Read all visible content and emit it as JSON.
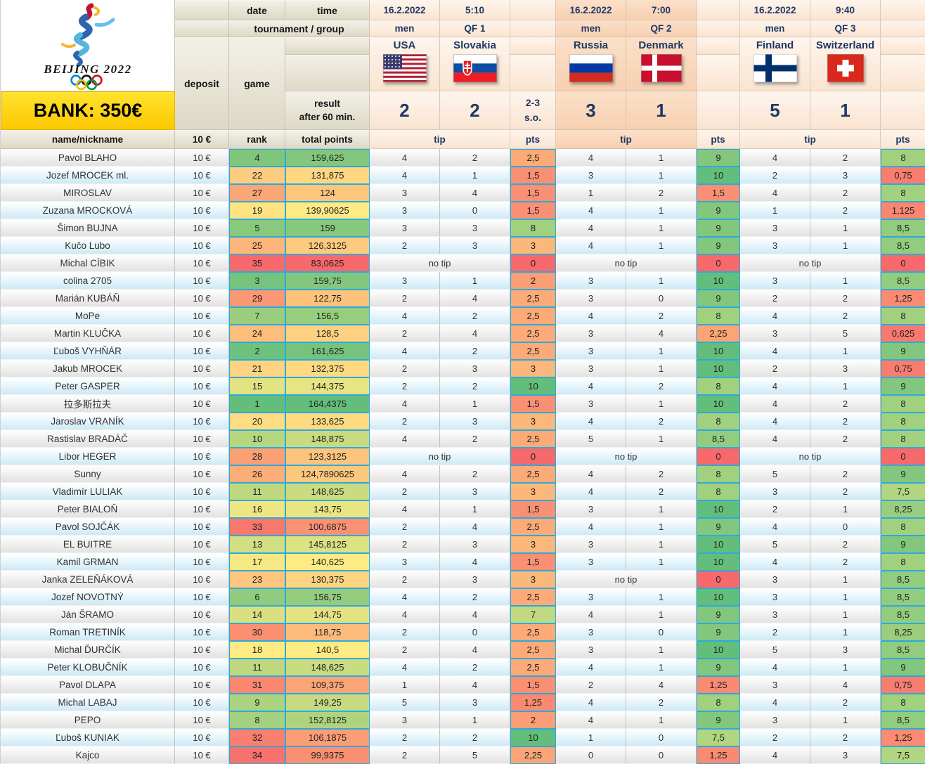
{
  "logo": {
    "text": "BEIJING 2022"
  },
  "bank": {
    "label": "BANK: 350€"
  },
  "labels": {
    "date": "date",
    "time": "time",
    "tournament_group": "tournament / group",
    "deposit": "deposit",
    "game": "game",
    "result_line1": "result",
    "result_line2": "after 60 min.",
    "name_nickname": "name/nickname",
    "deposit_value": "10 €",
    "rank": "rank",
    "total_points": "total points",
    "tip": "tip",
    "pts": "pts",
    "no_tip": "no tip"
  },
  "matches": [
    {
      "date": "16.2.2022",
      "time": "5:10",
      "gender": "men",
      "group": "QF 1",
      "team1": "USA",
      "team2": "Slovakia",
      "flag1": "usa",
      "flag2": "svk",
      "score1": "2",
      "score2": "2",
      "overtime": "2-3",
      "overtime_suffix": "s.o."
    },
    {
      "date": "16.2.2022",
      "time": "7:00",
      "gender": "men",
      "group": "QF 2",
      "team1": "Russia",
      "team2": "Denmark",
      "flag1": "rus",
      "flag2": "den",
      "score1": "3",
      "score2": "1",
      "overtime": "",
      "overtime_suffix": ""
    },
    {
      "date": "16.2.2022",
      "time": "9:40",
      "gender": "men",
      "group": "QF 3",
      "team1": "Finland",
      "team2": "Switzerland",
      "flag1": "fin",
      "flag2": "sui",
      "score1": "5",
      "score2": "1",
      "overtime": "",
      "overtime_suffix": ""
    }
  ],
  "colors": {
    "scale_red": "#F8696B",
    "scale_yellow": "#FFEB84",
    "scale_green": "#63BE7B",
    "scale_border": "#2BAADF",
    "navy": "#1F3864",
    "bank_yellow": "#FFD400"
  },
  "scales": {
    "rank": {
      "min": 1,
      "mid": 18,
      "max": 35
    },
    "total": {
      "min": 83.0625,
      "mid": 140.5,
      "max": 164.4375
    },
    "pts": {
      "min": 0,
      "mid": 5,
      "max": 10
    }
  },
  "players": [
    {
      "name": "Pavol BLAHO",
      "deposit": "10 €",
      "rank": 4,
      "total": "159,625",
      "tips": [
        [
          "4",
          "2",
          "2,5"
        ],
        [
          "4",
          "1",
          "9"
        ],
        [
          "4",
          "2",
          "8"
        ]
      ]
    },
    {
      "name": "Jozef MROCEK ml.",
      "deposit": "10 €",
      "rank": 22,
      "total": "131,875",
      "tips": [
        [
          "4",
          "1",
          "1,5"
        ],
        [
          "3",
          "1",
          "10"
        ],
        [
          "2",
          "3",
          "0,75"
        ]
      ]
    },
    {
      "name": "MIROSLAV",
      "deposit": "10 €",
      "rank": 27,
      "total": "124",
      "tips": [
        [
          "3",
          "4",
          "1,5"
        ],
        [
          "1",
          "2",
          "1,5"
        ],
        [
          "4",
          "2",
          "8"
        ]
      ]
    },
    {
      "name": "Zuzana MROCKOVÁ",
      "deposit": "10 €",
      "rank": 19,
      "total": "139,90625",
      "tips": [
        [
          "3",
          "0",
          "1,5"
        ],
        [
          "4",
          "1",
          "9"
        ],
        [
          "1",
          "2",
          "1,125"
        ]
      ]
    },
    {
      "name": "Šimon BUJNA",
      "deposit": "10 €",
      "rank": 5,
      "total": "159",
      "tips": [
        [
          "3",
          "3",
          "8"
        ],
        [
          "4",
          "1",
          "9"
        ],
        [
          "3",
          "1",
          "8,5"
        ]
      ]
    },
    {
      "name": "Kučo Lubo",
      "deposit": "10 €",
      "rank": 25,
      "total": "126,3125",
      "tips": [
        [
          "2",
          "3",
          "3"
        ],
        [
          "4",
          "1",
          "9"
        ],
        [
          "3",
          "1",
          "8,5"
        ]
      ]
    },
    {
      "name": "Michal CÍBIK",
      "deposit": "10 €",
      "rank": 35,
      "total": "83,0625",
      "tips": [
        [
          "no tip",
          "0"
        ],
        [
          "no tip",
          "0"
        ],
        [
          "no tip",
          "0"
        ]
      ]
    },
    {
      "name": "colina 2705",
      "deposit": "10 €",
      "rank": 3,
      "total": "159,75",
      "tips": [
        [
          "3",
          "1",
          "2"
        ],
        [
          "3",
          "1",
          "10"
        ],
        [
          "3",
          "1",
          "8,5"
        ]
      ]
    },
    {
      "name": "Marián KUBÁŇ",
      "deposit": "10 €",
      "rank": 29,
      "total": "122,75",
      "tips": [
        [
          "2",
          "4",
          "2,5"
        ],
        [
          "3",
          "0",
          "9"
        ],
        [
          "2",
          "2",
          "1,25"
        ]
      ]
    },
    {
      "name": "MoPe",
      "deposit": "10 €",
      "rank": 7,
      "total": "156,5",
      "tips": [
        [
          "4",
          "2",
          "2,5"
        ],
        [
          "4",
          "2",
          "8"
        ],
        [
          "4",
          "2",
          "8"
        ]
      ]
    },
    {
      "name": "Martin KLUČKA",
      "deposit": "10 €",
      "rank": 24,
      "total": "128,5",
      "tips": [
        [
          "2",
          "4",
          "2,5"
        ],
        [
          "3",
          "4",
          "2,25"
        ],
        [
          "3",
          "5",
          "0,625"
        ]
      ]
    },
    {
      "name": "Ľuboš VYHŇÁR",
      "deposit": "10 €",
      "rank": 2,
      "total": "161,625",
      "tips": [
        [
          "4",
          "2",
          "2,5"
        ],
        [
          "3",
          "1",
          "10"
        ],
        [
          "4",
          "1",
          "9"
        ]
      ]
    },
    {
      "name": "Jakub MROCEK",
      "deposit": "10 €",
      "rank": 21,
      "total": "132,375",
      "tips": [
        [
          "2",
          "3",
          "3"
        ],
        [
          "3",
          "1",
          "10"
        ],
        [
          "2",
          "3",
          "0,75"
        ]
      ]
    },
    {
      "name": "Peter GASPER",
      "deposit": "10 €",
      "rank": 15,
      "total": "144,375",
      "tips": [
        [
          "2",
          "2",
          "10"
        ],
        [
          "4",
          "2",
          "8"
        ],
        [
          "4",
          "1",
          "9"
        ]
      ]
    },
    {
      "name": "拉多斯拉夫",
      "deposit": "10 €",
      "rank": 1,
      "total": "164,4375",
      "tips": [
        [
          "4",
          "1",
          "1,5"
        ],
        [
          "3",
          "1",
          "10"
        ],
        [
          "4",
          "2",
          "8"
        ]
      ]
    },
    {
      "name": "Jaroslav VRANÍK",
      "deposit": "10 €",
      "rank": 20,
      "total": "133,625",
      "tips": [
        [
          "2",
          "3",
          "3"
        ],
        [
          "4",
          "2",
          "8"
        ],
        [
          "4",
          "2",
          "8"
        ]
      ]
    },
    {
      "name": "Rastislav BRADÁČ",
      "deposit": "10 €",
      "rank": 10,
      "total": "148,875",
      "tips": [
        [
          "4",
          "2",
          "2,5"
        ],
        [
          "5",
          "1",
          "8,5"
        ],
        [
          "4",
          "2",
          "8"
        ]
      ]
    },
    {
      "name": "Libor HEGER",
      "deposit": "10 €",
      "rank": 28,
      "total": "123,3125",
      "tips": [
        [
          "no tip",
          "0"
        ],
        [
          "no tip",
          "0"
        ],
        [
          "no tip",
          "0"
        ]
      ]
    },
    {
      "name": "Sunny",
      "deposit": "10 €",
      "rank": 26,
      "total": "124,7890625",
      "tips": [
        [
          "4",
          "2",
          "2,5"
        ],
        [
          "4",
          "2",
          "8"
        ],
        [
          "5",
          "2",
          "9"
        ]
      ]
    },
    {
      "name": "Vladimír LULIAK",
      "deposit": "10 €",
      "rank": 11,
      "total": "148,625",
      "tips": [
        [
          "2",
          "3",
          "3"
        ],
        [
          "4",
          "2",
          "8"
        ],
        [
          "3",
          "2",
          "7,5"
        ]
      ]
    },
    {
      "name": "Peter BIALOŇ",
      "deposit": "10 €",
      "rank": 16,
      "total": "143,75",
      "tips": [
        [
          "4",
          "1",
          "1,5"
        ],
        [
          "3",
          "1",
          "10"
        ],
        [
          "2",
          "1",
          "8,25"
        ]
      ]
    },
    {
      "name": "Pavol SOJČÁK",
      "deposit": "10 €",
      "rank": 33,
      "total": "100,6875",
      "tips": [
        [
          "2",
          "4",
          "2,5"
        ],
        [
          "4",
          "1",
          "9"
        ],
        [
          "4",
          "0",
          "8"
        ]
      ]
    },
    {
      "name": "EL BUITRE",
      "deposit": "10 €",
      "rank": 13,
      "total": "145,8125",
      "tips": [
        [
          "2",
          "3",
          "3"
        ],
        [
          "3",
          "1",
          "10"
        ],
        [
          "5",
          "2",
          "9"
        ]
      ]
    },
    {
      "name": "Kamil GRMAN",
      "deposit": "10 €",
      "rank": 17,
      "total": "140,625",
      "tips": [
        [
          "3",
          "4",
          "1,5"
        ],
        [
          "3",
          "1",
          "10"
        ],
        [
          "4",
          "2",
          "8"
        ]
      ]
    },
    {
      "name": "Janka ZELEŇÁKOVÁ",
      "deposit": "10 €",
      "rank": 23,
      "total": "130,375",
      "tips": [
        [
          "2",
          "3",
          "3"
        ],
        [
          "no tip",
          "0"
        ],
        [
          "3",
          "1",
          "8,5"
        ]
      ]
    },
    {
      "name": "Jozef NOVOTNÝ",
      "deposit": "10 €",
      "rank": 6,
      "total": "156,75",
      "tips": [
        [
          "4",
          "2",
          "2,5"
        ],
        [
          "3",
          "1",
          "10"
        ],
        [
          "3",
          "1",
          "8,5"
        ]
      ]
    },
    {
      "name": "Ján ŠRAMO",
      "deposit": "10 €",
      "rank": 14,
      "total": "144,75",
      "tips": [
        [
          "4",
          "4",
          "7"
        ],
        [
          "4",
          "1",
          "9"
        ],
        [
          "3",
          "1",
          "8,5"
        ]
      ]
    },
    {
      "name": "Roman TRETINÍK",
      "deposit": "10 €",
      "rank": 30,
      "total": "118,75",
      "tips": [
        [
          "2",
          "0",
          "2,5"
        ],
        [
          "3",
          "0",
          "9"
        ],
        [
          "2",
          "1",
          "8,25"
        ]
      ]
    },
    {
      "name": "Michal ĎURČÍK",
      "deposit": "10 €",
      "rank": 18,
      "total": "140,5",
      "tips": [
        [
          "2",
          "4",
          "2,5"
        ],
        [
          "3",
          "1",
          "10"
        ],
        [
          "5",
          "3",
          "8,5"
        ]
      ]
    },
    {
      "name": "Peter KLOBUČNÍK",
      "deposit": "10 €",
      "rank": 11,
      "total": "148,625",
      "tips": [
        [
          "4",
          "2",
          "2,5"
        ],
        [
          "4",
          "1",
          "9"
        ],
        [
          "4",
          "1",
          "9"
        ]
      ]
    },
    {
      "name": "Pavol DLAPA",
      "deposit": "10 €",
      "rank": 31,
      "total": "109,375",
      "tips": [
        [
          "1",
          "4",
          "1,5"
        ],
        [
          "2",
          "4",
          "1,25"
        ],
        [
          "3",
          "4",
          "0,75"
        ]
      ]
    },
    {
      "name": "Michal LABAJ",
      "deposit": "10 €",
      "rank": 9,
      "total": "149,25",
      "tips": [
        [
          "5",
          "3",
          "1,25"
        ],
        [
          "4",
          "2",
          "8"
        ],
        [
          "4",
          "2",
          "8"
        ]
      ]
    },
    {
      "name": "PEPO",
      "deposit": "10 €",
      "rank": 8,
      "total": "152,8125",
      "tips": [
        [
          "3",
          "1",
          "2"
        ],
        [
          "4",
          "1",
          "9"
        ],
        [
          "3",
          "1",
          "8,5"
        ]
      ]
    },
    {
      "name": "Ľuboš KUNIAK",
      "deposit": "10 €",
      "rank": 32,
      "total": "106,1875",
      "tips": [
        [
          "2",
          "2",
          "10"
        ],
        [
          "1",
          "0",
          "7,5"
        ],
        [
          "2",
          "2",
          "1,25"
        ]
      ]
    },
    {
      "name": "Kajco",
      "deposit": "10 €",
      "rank": 34,
      "total": "99,9375",
      "tips": [
        [
          "2",
          "5",
          "2,25"
        ],
        [
          "0",
          "0",
          "1,25"
        ],
        [
          "4",
          "3",
          "7,5"
        ]
      ]
    }
  ]
}
